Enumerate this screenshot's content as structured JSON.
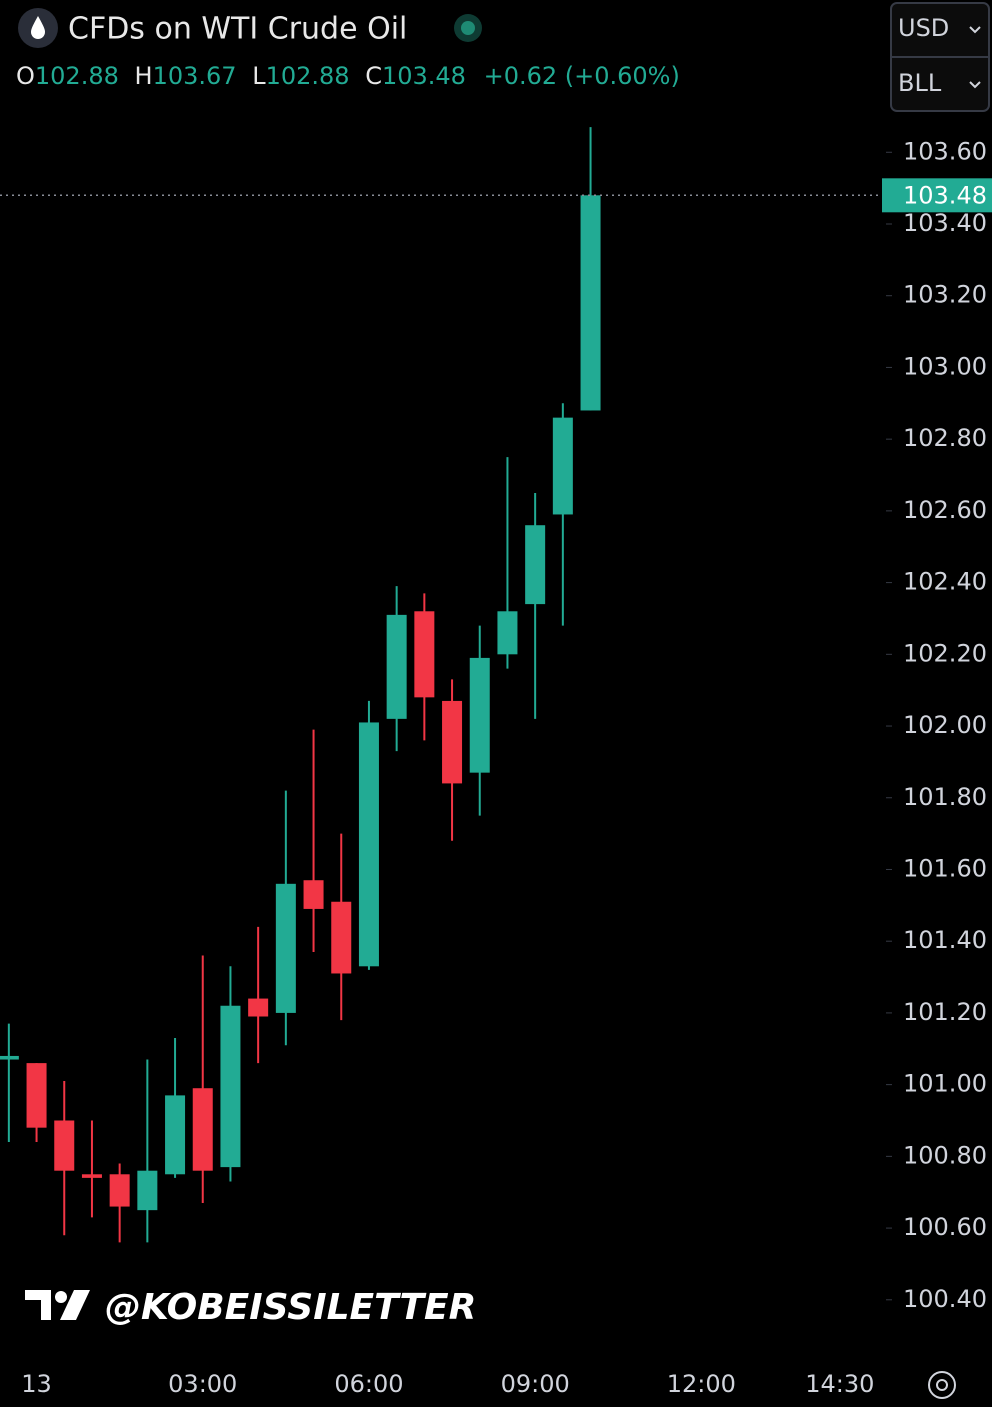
{
  "chart_data": {
    "type": "candlestick",
    "title": "CFDs on WTI Crude Oil",
    "ohlc_labels": [
      "O",
      "H",
      "L",
      "C"
    ],
    "ohlc_values": [
      102.88,
      103.67,
      102.88,
      103.48
    ],
    "change": "+0.62 (+0.60%)",
    "currency": "USD",
    "unit": "BLL",
    "watermark": "@KOBEISSILETTER",
    "up_color": "#22ab94",
    "down_color": "#f23645",
    "categories": [
      null,
      "13",
      null,
      null,
      null,
      null,
      null,
      "03:00",
      null,
      null,
      null,
      null,
      null,
      "06:00",
      null,
      null,
      null,
      null,
      null,
      "09:00",
      null,
      null,
      null,
      null,
      null,
      "12:00",
      null,
      null,
      null,
      null,
      "14:30"
    ],
    "open": [
      101.07,
      101.06,
      100.9,
      100.75,
      100.75,
      100.65,
      100.75,
      100.99,
      100.77,
      101.24,
      101.2,
      101.57,
      101.51,
      101.33,
      102.02,
      102.32,
      102.07,
      101.87,
      102.2,
      102.34,
      102.59,
      102.88,
      null,
      null,
      null,
      null,
      null,
      null,
      null,
      null,
      null
    ],
    "high": [
      101.17,
      101.06,
      101.01,
      100.9,
      100.78,
      101.07,
      101.13,
      101.36,
      101.33,
      101.44,
      101.82,
      101.99,
      101.7,
      102.07,
      102.39,
      102.37,
      102.13,
      102.28,
      102.75,
      102.65,
      102.9,
      103.67,
      null,
      null,
      null,
      null,
      null,
      null,
      null,
      null,
      null
    ],
    "low": [
      100.84,
      100.84,
      100.58,
      100.63,
      100.56,
      100.56,
      100.74,
      100.67,
      100.73,
      101.06,
      101.11,
      101.37,
      101.18,
      101.32,
      101.93,
      101.96,
      101.68,
      101.75,
      102.16,
      102.02,
      102.28,
      102.88,
      null,
      null,
      null,
      null,
      null,
      null,
      null,
      null,
      null
    ],
    "close": [
      101.08,
      100.88,
      100.76,
      100.74,
      100.66,
      100.76,
      100.97,
      100.76,
      101.22,
      101.19,
      101.56,
      101.49,
      101.31,
      102.01,
      102.31,
      102.08,
      101.84,
      102.19,
      102.32,
      102.56,
      102.86,
      103.48,
      null,
      null,
      null,
      null,
      null,
      null,
      null,
      null,
      null
    ],
    "ylim": [
      100.26,
      103.69
    ],
    "yticks": [
      {
        "value": 100.4,
        "label": "100.40"
      },
      {
        "value": 100.6,
        "label": "100.60"
      },
      {
        "value": 100.8,
        "label": "100.80"
      },
      {
        "value": 101.0,
        "label": "101.00"
      },
      {
        "value": 101.2,
        "label": "101.20"
      },
      {
        "value": 101.4,
        "label": "101.40"
      },
      {
        "value": 101.6,
        "label": "101.60"
      },
      {
        "value": 101.8,
        "label": "101.80"
      },
      {
        "value": 102.0,
        "label": "102.00"
      },
      {
        "value": 102.2,
        "label": "102.20"
      },
      {
        "value": 102.4,
        "label": "102.40"
      },
      {
        "value": 102.6,
        "label": "102.60"
      },
      {
        "value": 102.8,
        "label": "102.80"
      },
      {
        "value": 103.0,
        "label": "103.00"
      },
      {
        "value": 103.2,
        "label": "103.20"
      },
      {
        "value": 103.4,
        "label": "103.40"
      },
      {
        "value": 103.6,
        "label": "103.60"
      }
    ]
  }
}
